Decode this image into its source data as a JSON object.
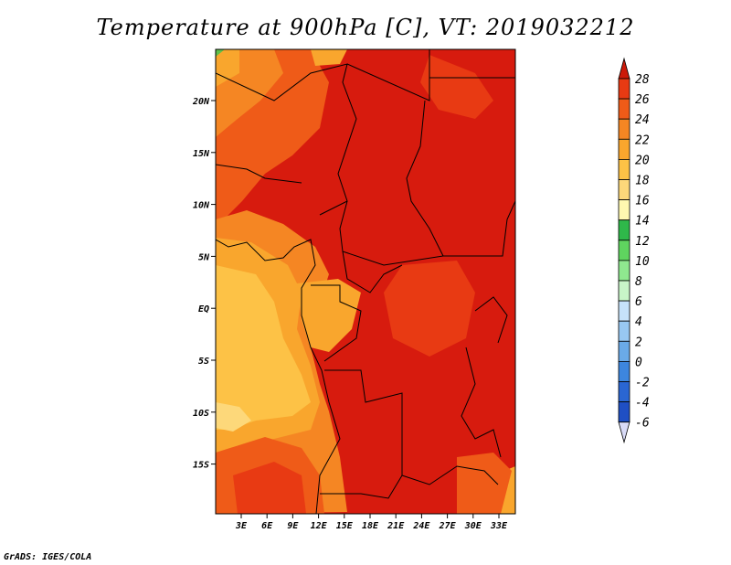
{
  "title": "Temperature at 900hPa [C], VT: 2019032212",
  "credit": "GrADS: IGES/COLA",
  "map": {
    "lat_labels": [
      "20N",
      "15N",
      "10N",
      "5N",
      "EQ",
      "5S",
      "10S",
      "15S"
    ],
    "lon_labels": [
      "3E",
      "6E",
      "9E",
      "12E",
      "15E",
      "18E",
      "21E",
      "24E",
      "27E",
      "30E",
      "33E"
    ]
  },
  "colorbar": {
    "levels": [
      "28",
      "26",
      "24",
      "22",
      "20",
      "18",
      "16",
      "14",
      "12",
      "10",
      "8",
      "6",
      "4",
      "2",
      "0",
      "-2",
      "-4",
      "-6"
    ],
    "colors": [
      "#f5e6a0",
      "#fdd87a",
      "#fdc246",
      "#f9a62d",
      "#f58623",
      "#ef5b18",
      "#e83a13",
      "#d71b0e",
      "#cc1a0a"
    ]
  }
}
